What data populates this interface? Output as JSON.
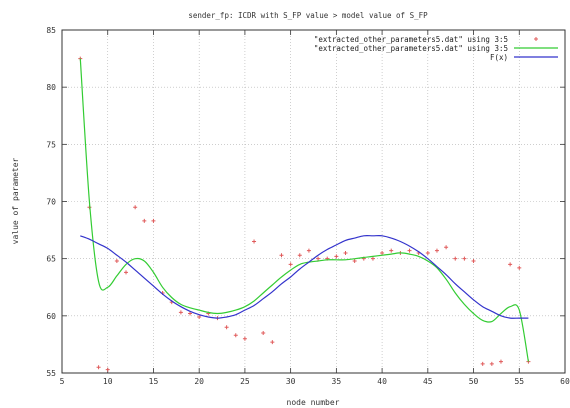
{
  "chart_data": {
    "type": "scatter",
    "title": "sender_fp: ICDR with S_FP value > model value of S_FP",
    "xlabel": "node number",
    "ylabel": "value of parameter",
    "xlim": [
      5,
      60
    ],
    "ylim": [
      55,
      85
    ],
    "xticks": [
      5,
      10,
      15,
      20,
      25,
      30,
      35,
      40,
      45,
      50,
      55,
      60
    ],
    "yticks": [
      55,
      60,
      65,
      70,
      75,
      80,
      85
    ],
    "grid": true,
    "legend_position": "top-right",
    "series": [
      {
        "name": "\"extracted_other_parameters5.dat\" using 3:5",
        "kind": "points",
        "color": "#e05a5a",
        "x": [
          7,
          8,
          9,
          10,
          11,
          12,
          13,
          14,
          15,
          16,
          17,
          18,
          19,
          20,
          21,
          22,
          23,
          24,
          25,
          26,
          27,
          28,
          29,
          30,
          31,
          32,
          33,
          34,
          35,
          36,
          37,
          38,
          39,
          40,
          41,
          42,
          43,
          44,
          45,
          46,
          47,
          48,
          49,
          50,
          51,
          52,
          53,
          54,
          55,
          56
        ],
        "y": [
          82.5,
          69.5,
          55.5,
          55.3,
          64.8,
          63.8,
          69.5,
          68.3,
          68.3,
          62.0,
          61.2,
          60.3,
          60.2,
          59.9,
          60.2,
          59.8,
          59.0,
          58.3,
          58.0,
          66.5,
          58.5,
          57.7,
          65.3,
          64.5,
          65.3,
          65.7,
          65.0,
          65.0,
          65.2,
          65.5,
          64.8,
          65.0,
          65.0,
          65.5,
          65.7,
          65.5,
          65.7,
          65.5,
          65.5,
          65.7,
          66.0,
          65.0,
          65.0,
          64.8,
          55.8,
          55.8,
          56.0,
          64.5,
          64.2,
          56.0
        ]
      },
      {
        "name": "\"extracted_other_parameters5.dat\" using 3:5",
        "kind": "smooth",
        "color": "#33cc33",
        "x": [
          7,
          8,
          9,
          10,
          11,
          12,
          13,
          14,
          15,
          16,
          17,
          18,
          19,
          20,
          21,
          22,
          23,
          24,
          25,
          26,
          27,
          28,
          29,
          30,
          31,
          32,
          33,
          34,
          35,
          36,
          37,
          38,
          39,
          40,
          41,
          42,
          43,
          44,
          45,
          46,
          47,
          48,
          49,
          50,
          51,
          52,
          53,
          54,
          55,
          56
        ],
        "y": [
          82.5,
          70.0,
          63.0,
          62.5,
          63.5,
          64.5,
          65.0,
          64.8,
          63.8,
          62.5,
          61.6,
          61.0,
          60.7,
          60.5,
          60.3,
          60.2,
          60.3,
          60.5,
          60.8,
          61.3,
          62.0,
          62.7,
          63.4,
          64.0,
          64.5,
          64.7,
          64.8,
          64.9,
          64.9,
          64.9,
          65.0,
          65.1,
          65.2,
          65.3,
          65.4,
          65.5,
          65.4,
          65.2,
          64.8,
          64.2,
          63.2,
          62.0,
          61.0,
          60.2,
          59.6,
          59.5,
          60.2,
          60.8,
          60.5,
          56.0
        ]
      },
      {
        "name": "F(x)",
        "kind": "fit",
        "color": "#3333cc",
        "x": [
          7,
          8,
          9,
          10,
          11,
          12,
          13,
          14,
          15,
          16,
          17,
          18,
          19,
          20,
          21,
          22,
          23,
          24,
          25,
          26,
          27,
          28,
          29,
          30,
          31,
          32,
          33,
          34,
          35,
          36,
          37,
          38,
          39,
          40,
          41,
          42,
          43,
          44,
          45,
          46,
          47,
          48,
          49,
          50,
          51,
          52,
          53,
          54,
          55,
          56
        ],
        "y": [
          67.0,
          66.7,
          66.3,
          65.9,
          65.3,
          64.7,
          64.0,
          63.3,
          62.6,
          61.9,
          61.3,
          60.8,
          60.4,
          60.1,
          59.9,
          59.8,
          59.9,
          60.1,
          60.5,
          60.9,
          61.5,
          62.1,
          62.8,
          63.4,
          64.1,
          64.7,
          65.3,
          65.8,
          66.2,
          66.6,
          66.8,
          67.0,
          67.0,
          67.0,
          66.8,
          66.5,
          66.1,
          65.6,
          65.0,
          64.3,
          63.6,
          62.8,
          62.1,
          61.4,
          60.8,
          60.4,
          60.0,
          59.8,
          59.8,
          59.8
        ]
      }
    ]
  }
}
